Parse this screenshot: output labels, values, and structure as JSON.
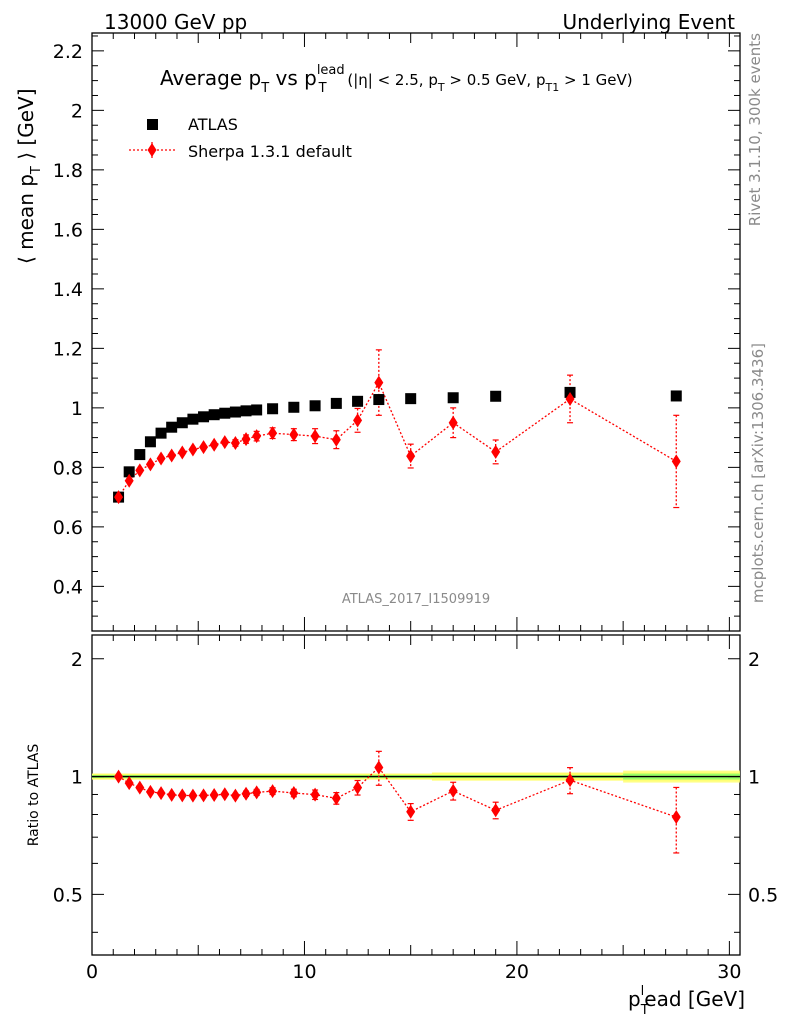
{
  "header": {
    "left": "13000 GeV pp",
    "right": "Underlying Event"
  },
  "side_text": {
    "top": "Rivet 3.1.10,  300k events",
    "bottom": "mcplots.cern.ch [arXiv:1306.3436]"
  },
  "watermark": "ATLAS_2017_I1509919",
  "colors": {
    "atlas": "#000000",
    "sherpa": "#ff0000",
    "band_yellow": "#ffff66",
    "band_green": "#99ff66"
  },
  "chart_data": [
    {
      "type": "scatter",
      "title": {
        "main": "Average p",
        "sub_t": "T",
        "vs": " vs p",
        "sup_lead": "lead",
        "sub_t2": "T",
        "cut_a": " (|η| < 2.5, p",
        "cut_sub_t": "T",
        "cut_b": " > 0.5 GeV, p",
        "cut_sub_t1": "T1",
        "cut_c": " > 1 GeV)"
      },
      "ylabel": {
        "a": "⟨ mean p",
        "sub": "T",
        "b": " ⟩ [GeV]"
      },
      "xlim": [
        0,
        30.5
      ],
      "ylim": [
        0.25,
        2.26
      ],
      "y_ticks": [
        0.4,
        0.6,
        0.8,
        1,
        1.2,
        1.4,
        1.6,
        1.8,
        2,
        2.2
      ],
      "y_tick_labels": [
        "0.4",
        "0.6",
        "0.8",
        "1",
        "1.2",
        "1.4",
        "1.6",
        "1.8",
        "2",
        "2.2"
      ],
      "legend_position": "top-left",
      "series": [
        {
          "name": "ATLAS",
          "marker": "square",
          "x": [
            1.25,
            1.75,
            2.25,
            2.75,
            3.25,
            3.75,
            4.25,
            4.75,
            5.25,
            5.75,
            6.25,
            6.75,
            7.25,
            7.75,
            8.5,
            9.5,
            10.5,
            11.5,
            12.5,
            13.5,
            15,
            17,
            19,
            22.5,
            27.5
          ],
          "y": [
            0.7,
            0.785,
            0.843,
            0.886,
            0.915,
            0.935,
            0.95,
            0.962,
            0.97,
            0.977,
            0.982,
            0.986,
            0.99,
            0.993,
            0.997,
            1.002,
            1.007,
            1.015,
            1.022,
            1.028,
            1.031,
            1.034,
            1.039,
            1.052,
            1.04
          ]
        },
        {
          "name": "Sherpa 1.3.1 default",
          "marker": "diamond",
          "x": [
            1.25,
            1.75,
            2.25,
            2.75,
            3.25,
            3.75,
            4.25,
            4.75,
            5.25,
            5.75,
            6.25,
            6.75,
            7.25,
            7.75,
            8.5,
            9.5,
            10.5,
            11.5,
            12.5,
            13.5,
            15,
            17,
            19,
            22.5,
            27.5
          ],
          "y": [
            0.7,
            0.755,
            0.79,
            0.81,
            0.83,
            0.84,
            0.85,
            0.86,
            0.868,
            0.876,
            0.885,
            0.882,
            0.895,
            0.905,
            0.915,
            0.91,
            0.905,
            0.893,
            0.958,
            1.085,
            0.838,
            0.95,
            0.852,
            1.03,
            0.82
          ],
          "err": [
            0.008,
            0.006,
            0.006,
            0.006,
            0.006,
            0.006,
            0.007,
            0.008,
            0.008,
            0.009,
            0.01,
            0.011,
            0.014,
            0.016,
            0.018,
            0.02,
            0.025,
            0.03,
            0.04,
            0.11,
            0.04,
            0.05,
            0.04,
            0.08,
            0.155
          ]
        }
      ]
    },
    {
      "type": "scatter",
      "ylabel": "Ratio to ATLAS",
      "xlabel": {
        "a": "p",
        "sub": "T",
        "sup": "l",
        "b": "ead [GeV]"
      },
      "xlim": [
        0,
        30.5
      ],
      "ylim": [
        0.35,
        2.3
      ],
      "y_scale": "log",
      "x_ticks": [
        0,
        10,
        20,
        30
      ],
      "x_tick_labels": [
        "0",
        "10",
        "20",
        "30"
      ],
      "y_ticks": [
        0.5,
        1,
        2
      ],
      "y_tick_labels": [
        "0.5",
        "1",
        "2"
      ],
      "series": [
        {
          "name": "Sherpa 1.3.1 default",
          "x": [
            1.25,
            1.75,
            2.25,
            2.75,
            3.25,
            3.75,
            4.25,
            4.75,
            5.25,
            5.75,
            6.25,
            6.75,
            7.25,
            7.75,
            8.5,
            9.5,
            10.5,
            11.5,
            12.5,
            13.5,
            15,
            17,
            19,
            22.5,
            27.5
          ],
          "y": [
            1.0,
            0.962,
            0.937,
            0.914,
            0.907,
            0.898,
            0.895,
            0.894,
            0.895,
            0.897,
            0.901,
            0.894,
            0.904,
            0.911,
            0.918,
            0.908,
            0.899,
            0.88,
            0.937,
            1.055,
            0.813,
            0.919,
            0.82,
            0.979,
            0.788
          ],
          "err": [
            0.008,
            0.006,
            0.006,
            0.006,
            0.006,
            0.006,
            0.007,
            0.008,
            0.008,
            0.009,
            0.01,
            0.011,
            0.014,
            0.016,
            0.018,
            0.02,
            0.025,
            0.03,
            0.04,
            0.105,
            0.04,
            0.048,
            0.04,
            0.075,
            0.15
          ]
        }
      ]
    }
  ]
}
